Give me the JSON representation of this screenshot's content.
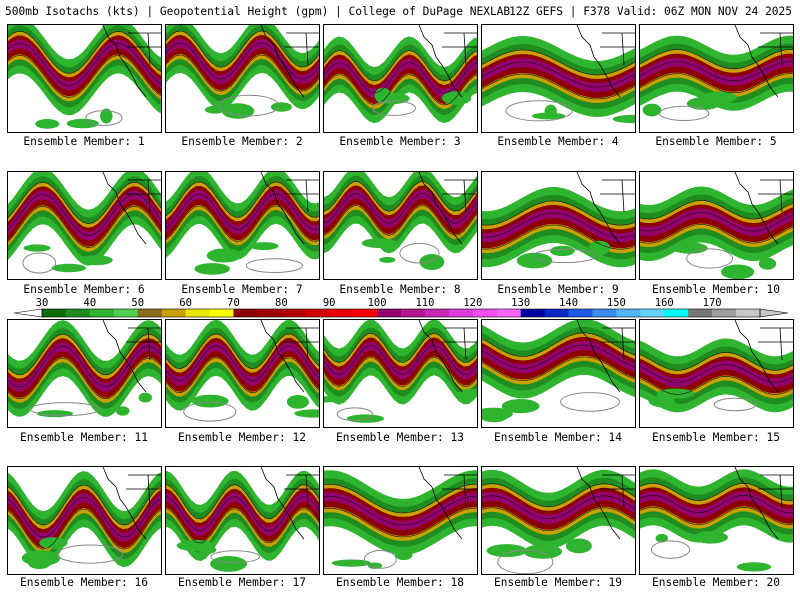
{
  "header": {
    "left_title": "500mb Isotachs (kts) | Geopotential Height (gpm) | College of DuPage NEXLAB",
    "right_title": "12Z GEFS | F378 Valid: 06Z MON NOV 24 2025"
  },
  "panels": [
    {
      "caption": "Ensemble Member: 1"
    },
    {
      "caption": "Ensemble Member: 2"
    },
    {
      "caption": "Ensemble Member: 3"
    },
    {
      "caption": "Ensemble Member: 4"
    },
    {
      "caption": "Ensemble Member: 5"
    },
    {
      "caption": "Ensemble Member: 6"
    },
    {
      "caption": "Ensemble Member: 7"
    },
    {
      "caption": "Ensemble Member: 8"
    },
    {
      "caption": "Ensemble Member: 9"
    },
    {
      "caption": "Ensemble Member: 10"
    },
    {
      "caption": "Ensemble Member: 11"
    },
    {
      "caption": "Ensemble Member: 12"
    },
    {
      "caption": "Ensemble Member: 13"
    },
    {
      "caption": "Ensemble Member: 14"
    },
    {
      "caption": "Ensemble Member: 15"
    },
    {
      "caption": "Ensemble Member: 16"
    },
    {
      "caption": "Ensemble Member: 17"
    },
    {
      "caption": "Ensemble Member: 18"
    },
    {
      "caption": "Ensemble Member: 19"
    },
    {
      "caption": "Ensemble Member: 20"
    }
  ],
  "colorbar": {
    "tick_labels": [
      "30",
      "40",
      "50",
      "60",
      "70",
      "80",
      "90",
      "100",
      "110",
      "120",
      "130",
      "140",
      "150",
      "160",
      "170"
    ],
    "colors": [
      "#0a6e0a",
      "#1e8c1e",
      "#2eb42e",
      "#50d050",
      "#8c6b1e",
      "#c8a000",
      "#e6e600",
      "#ffff00",
      "#8c0000",
      "#a00000",
      "#b40000",
      "#d20000",
      "#e60000",
      "#ff0000",
      "#96006e",
      "#b4148c",
      "#c828b4",
      "#dc3cdc",
      "#f050f0",
      "#ff64ff",
      "#0000a0",
      "#0a28c8",
      "#1e5ae6",
      "#3c8cf0",
      "#50b4ff",
      "#64d2ff",
      "#00ffff",
      "#787878",
      "#a0a0a0",
      "#c8c8c8"
    ]
  }
}
